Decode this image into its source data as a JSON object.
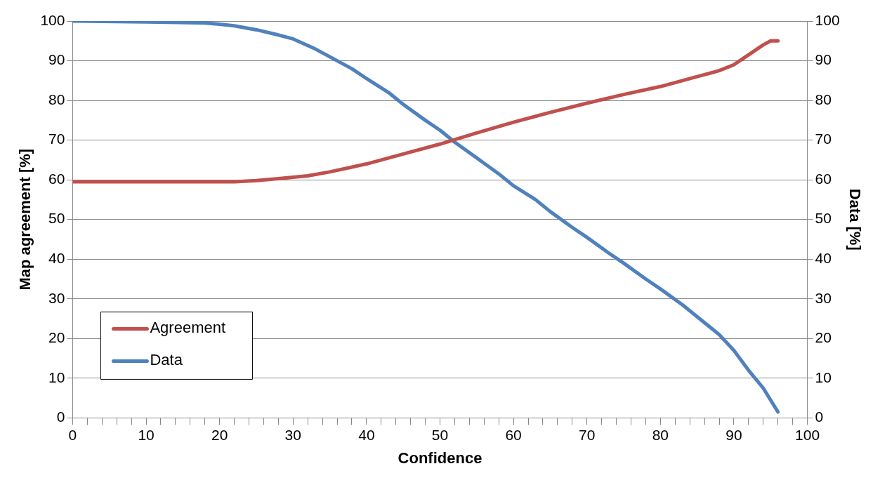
{
  "chart_data": {
    "type": "line",
    "xlabel": "Confidence",
    "ylabel": "Map agreement [%]",
    "y2label": "Data [%]",
    "xlim": [
      0,
      100
    ],
    "xticks": [
      0,
      {
        "value": 2,
        "label": null
      },
      {
        "value": 4,
        "label": null
      },
      {
        "value": 6,
        "label": null
      },
      {
        "value": 8,
        "label": null
      },
      10,
      {
        "value": 12,
        "label": null
      },
      {
        "value": 14,
        "label": null
      },
      {
        "value": 16,
        "label": null
      },
      {
        "value": 18,
        "label": null
      },
      20,
      {
        "value": 22,
        "label": null
      },
      {
        "value": 24,
        "label": null
      },
      {
        "value": 26,
        "label": null
      },
      {
        "value": 28,
        "label": null
      },
      30,
      {
        "value": 32,
        "label": null
      },
      {
        "value": 34,
        "label": null
      },
      {
        "value": 36,
        "label": null
      },
      {
        "value": 38,
        "label": null
      },
      40,
      {
        "value": 42,
        "label": null
      },
      {
        "value": 44,
        "label": null
      },
      {
        "value": 46,
        "label": null
      },
      {
        "value": 48,
        "label": null
      },
      50,
      {
        "value": 52,
        "label": null
      },
      {
        "value": 54,
        "label": null
      },
      {
        "value": 56,
        "label": null
      },
      {
        "value": 58,
        "label": null
      },
      60,
      {
        "value": 62,
        "label": null
      },
      {
        "value": 64,
        "label": null
      },
      {
        "value": 66,
        "label": null
      },
      {
        "value": 68,
        "label": null
      },
      70,
      {
        "value": 72,
        "label": null
      },
      {
        "value": 74,
        "label": null
      },
      {
        "value": 76,
        "label": null
      },
      {
        "value": 78,
        "label": null
      },
      80,
      {
        "value": 82,
        "label": null
      },
      {
        "value": 84,
        "label": null
      },
      {
        "value": 86,
        "label": null
      },
      {
        "value": 88,
        "label": null
      },
      90,
      {
        "value": 92,
        "label": null
      },
      {
        "value": 94,
        "label": null
      },
      {
        "value": 96,
        "label": null
      },
      {
        "value": 98,
        "label": null
      },
      100
    ],
    "ylim": [
      0,
      100
    ],
    "yticks": [
      0,
      10,
      20,
      30,
      40,
      50,
      60,
      70,
      80,
      90,
      100
    ],
    "y2lim": [
      0,
      100
    ],
    "y2ticks": [
      0,
      10,
      20,
      30,
      40,
      50,
      60,
      70,
      80,
      90,
      100
    ],
    "grid": "y",
    "legend": "bottom left",
    "marker": "none",
    "line_style": "solid",
    "series": [
      {
        "name": "Agreement",
        "color": "#c0504d",
        "x": [
          0,
          10,
          22,
          25,
          28,
          32,
          35,
          40,
          45,
          50,
          55,
          60,
          65,
          70,
          75,
          80,
          85,
          88,
          90,
          92,
          94,
          95,
          96
        ],
        "values": [
          59.5,
          59.5,
          59.5,
          59.8,
          60.3,
          61,
          62,
          64,
          66.5,
          69,
          71.8,
          74.5,
          77,
          79.3,
          81.5,
          83.5,
          86,
          87.5,
          89,
          91.5,
          94,
          95,
          95
        ]
      },
      {
        "name": "Data",
        "color": "#4f81bd",
        "axis": "y2",
        "x": [
          0,
          10,
          18,
          20,
          22,
          25,
          28,
          30,
          33,
          35,
          38,
          40,
          43,
          45,
          48,
          50,
          52,
          55,
          58,
          60,
          63,
          65,
          68,
          70,
          73,
          75,
          78,
          80,
          83,
          85,
          88,
          90,
          92,
          94,
          95,
          96
        ],
        "values": [
          100,
          99.8,
          99.5,
          99.2,
          98.8,
          97.8,
          96.5,
          95.5,
          93,
          91,
          88,
          85.5,
          82,
          79,
          75,
          72.5,
          69.5,
          65.5,
          61.5,
          58.5,
          55,
          52,
          48,
          45.5,
          41.5,
          39,
          35,
          32.5,
          28.5,
          25.5,
          21,
          17,
          12,
          7.5,
          4.5,
          1.5
        ]
      }
    ]
  }
}
